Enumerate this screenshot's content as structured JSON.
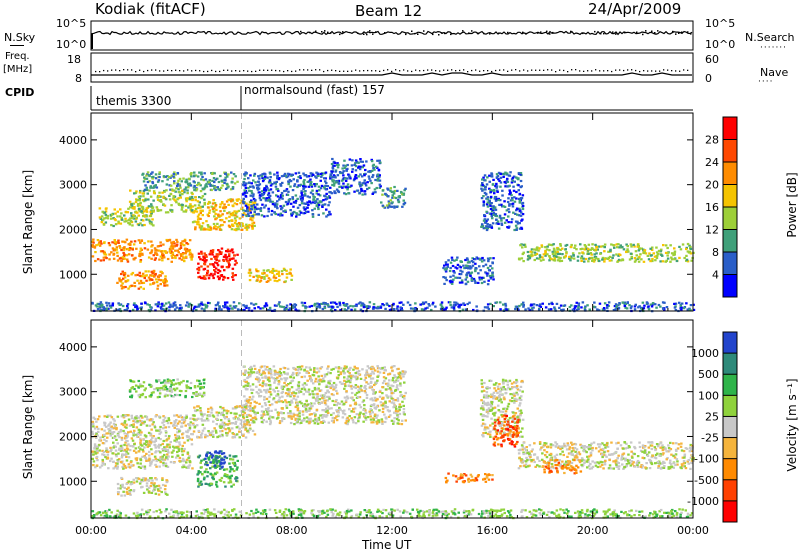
{
  "header": {
    "title": "Kodiak (fitACF)",
    "beam": "Beam 12",
    "date": "24/Apr/2009"
  },
  "side_labels": {
    "nsky": "N.Sky",
    "freq_top": "Freq.",
    "freq_unit": "[MHz]",
    "cpid": "CPID",
    "nsearch": "N.Search",
    "nave": "Nave"
  },
  "small_axes": {
    "nsky_ticks": [
      "10^5",
      "10^0"
    ],
    "nsearch_ticks": [
      "10^5",
      "10^0"
    ],
    "freq_ticks": [
      "18",
      "8"
    ],
    "nave_ticks": [
      "60",
      "0"
    ]
  },
  "cpid_segments": [
    {
      "label": "themis 3300",
      "start_hour": 0
    },
    {
      "label": "normalsound (fast) 157",
      "start_hour": 6
    }
  ],
  "chart_data": [
    {
      "type": "heatmap",
      "name": "power",
      "xlabel": "",
      "ylabel": "Slant Range [km]",
      "xlim": [
        0,
        24
      ],
      "ylim": [
        180,
        4600
      ],
      "x_ticks": [
        "00:00",
        "04:00",
        "08:00",
        "12:00",
        "16:00",
        "20:00",
        "00:00"
      ],
      "y_ticks": [
        1000,
        2000,
        3000,
        4000
      ],
      "colorbar": {
        "label": "Power [dB]",
        "ticks": [
          "28",
          "24",
          "20",
          "16",
          "12",
          "8",
          "4"
        ],
        "colors": [
          "#ff0000",
          "#ff4800",
          "#ff8c00",
          "#f5c400",
          "#9dcf38",
          "#3fa07a",
          "#2a5ec8",
          "#0000ff"
        ]
      },
      "regions": [
        {
          "x": [
            0.0,
            4.0
          ],
          "y": [
            1300,
            1800
          ],
          "level": 2
        },
        {
          "x": [
            0.3,
            2.5
          ],
          "y": [
            2100,
            2500
          ],
          "level": 4
        },
        {
          "x": [
            1.5,
            4.5
          ],
          "y": [
            2400,
            2900
          ],
          "level": 4
        },
        {
          "x": [
            2.0,
            5.8
          ],
          "y": [
            2900,
            3300
          ],
          "level": 5
        },
        {
          "x": [
            4.0,
            6.5
          ],
          "y": [
            2000,
            2700
          ],
          "level": 3
        },
        {
          "x": [
            4.2,
            5.8
          ],
          "y": [
            900,
            1600
          ],
          "level": 0
        },
        {
          "x": [
            1.0,
            3.0
          ],
          "y": [
            700,
            1100
          ],
          "level": 2
        },
        {
          "x": [
            6.2,
            8.0
          ],
          "y": [
            850,
            1150
          ],
          "level": 3
        },
        {
          "x": [
            6.0,
            9.5
          ],
          "y": [
            2300,
            3300
          ],
          "level": 6
        },
        {
          "x": [
            9.5,
            11.5
          ],
          "y": [
            2800,
            3600
          ],
          "level": 6
        },
        {
          "x": [
            11.5,
            12.5
          ],
          "y": [
            2500,
            3000
          ],
          "level": 5
        },
        {
          "x": [
            15.5,
            17.2
          ],
          "y": [
            2000,
            3300
          ],
          "level": 6
        },
        {
          "x": [
            17.0,
            24.0
          ],
          "y": [
            1300,
            1700
          ],
          "level": 4
        },
        {
          "x": [
            14.0,
            16.0
          ],
          "y": [
            800,
            1400
          ],
          "level": 6
        },
        {
          "x": [
            0.0,
            24.0
          ],
          "y": [
            200,
            400
          ],
          "level": 6
        }
      ]
    },
    {
      "type": "heatmap",
      "name": "velocity",
      "xlabel": "Time UT",
      "ylabel": "Slant Range [km]",
      "xlim": [
        0,
        24
      ],
      "ylim": [
        180,
        4600
      ],
      "x_ticks": [
        "00:00",
        "04:00",
        "08:00",
        "12:00",
        "16:00",
        "20:00",
        "00:00"
      ],
      "y_ticks": [
        1000,
        2000,
        3000,
        4000
      ],
      "colorbar": {
        "label": "Velocity [m s⁻¹]",
        "ticks": [
          "1000",
          "500",
          "100",
          "25",
          "-25",
          "-100",
          "-500",
          "-1000"
        ],
        "colors": [
          "#2244cc",
          "#2e8a7a",
          "#2fb44a",
          "#8fd23c",
          "#c8c8c8",
          "#f5b43c",
          "#ff8a00",
          "#ff4000",
          "#ff0000"
        ]
      },
      "regions": [
        {
          "x": [
            0.0,
            4.0
          ],
          "y": [
            1300,
            2500
          ],
          "level": 4
        },
        {
          "x": [
            1.5,
            4.5
          ],
          "y": [
            2900,
            3300
          ],
          "level": 3
        },
        {
          "x": [
            4.0,
            6.5
          ],
          "y": [
            2000,
            2700
          ],
          "level": 4
        },
        {
          "x": [
            4.2,
            5.8
          ],
          "y": [
            900,
            1600
          ],
          "level": 2
        },
        {
          "x": [
            4.5,
            5.3
          ],
          "y": [
            1300,
            1700
          ],
          "level": 0
        },
        {
          "x": [
            1.0,
            3.0
          ],
          "y": [
            700,
            1100
          ],
          "level": 4
        },
        {
          "x": [
            6.0,
            12.5
          ],
          "y": [
            2300,
            3600
          ],
          "level": 4
        },
        {
          "x": [
            15.5,
            17.2
          ],
          "y": [
            2000,
            3300
          ],
          "level": 4
        },
        {
          "x": [
            16.0,
            17.0
          ],
          "y": [
            1800,
            2500
          ],
          "level": 7
        },
        {
          "x": [
            17.0,
            24.0
          ],
          "y": [
            1300,
            1900
          ],
          "level": 4
        },
        {
          "x": [
            18.0,
            19.5
          ],
          "y": [
            1200,
            1500
          ],
          "level": 6
        },
        {
          "x": [
            14.0,
            16.0
          ],
          "y": [
            1000,
            1200
          ],
          "level": 6
        },
        {
          "x": [
            0.0,
            24.0
          ],
          "y": [
            200,
            400
          ],
          "level": 3
        }
      ]
    }
  ]
}
